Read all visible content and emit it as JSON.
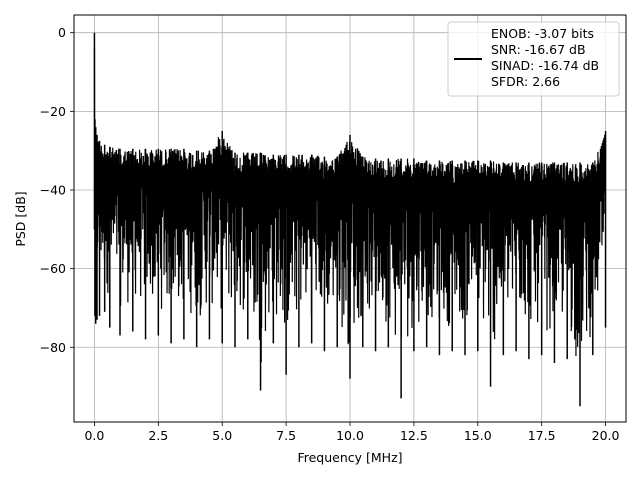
{
  "chart_data": {
    "type": "line",
    "xlabel": "Frequency [MHz]",
    "ylabel": "PSD [dB]",
    "xlim": [
      -0.8,
      20.8
    ],
    "ylim": [
      -99,
      4.5
    ],
    "x_ticks": [
      0.0,
      2.5,
      5.0,
      7.5,
      10.0,
      12.5,
      15.0,
      17.5,
      20.0
    ],
    "x_tick_labels": [
      "0.0",
      "2.5",
      "5.0",
      "7.5",
      "10.0",
      "12.5",
      "15.0",
      "17.5",
      "20.0"
    ],
    "y_ticks": [
      0,
      -20,
      -40,
      -60,
      -80
    ],
    "y_tick_labels": [
      "0",
      "−20",
      "−40",
      "−60",
      "−80"
    ],
    "grid": true,
    "legend_position": "top-right",
    "series": [
      {
        "name": "ENOB: -3.07 bits\nSNR: -16.67 dB\nSINAD: -16.74 dB\nSFDR: 2.66",
        "color": "#000000",
        "x": [
          0.0,
          0.02,
          0.05,
          0.1,
          0.2,
          0.4,
          0.6,
          1.0,
          1.5,
          2.0,
          2.5,
          3.0,
          3.5,
          4.0,
          4.5,
          5.0,
          5.5,
          6.0,
          6.5,
          7.0,
          7.5,
          8.0,
          8.5,
          9.0,
          9.5,
          10.0,
          10.5,
          11.0,
          11.5,
          12.0,
          12.5,
          13.0,
          13.5,
          14.0,
          14.5,
          15.0,
          15.5,
          16.0,
          16.5,
          17.0,
          17.5,
          18.0,
          18.5,
          19.0,
          19.5,
          20.0
        ],
        "envelope_upper": [
          0.0,
          -22.0,
          -24.0,
          -26.0,
          -27.5,
          -28.5,
          -29.0,
          -29.5,
          -29.5,
          -29.5,
          -29.5,
          -29.5,
          -29.5,
          -30.0,
          -30.0,
          -25.0,
          -30.5,
          -30.5,
          -30.5,
          -31.0,
          -31.0,
          -31.0,
          -31.0,
          -31.5,
          -31.5,
          -26.0,
          -31.5,
          -32.0,
          -32.0,
          -32.0,
          -32.0,
          -32.5,
          -32.5,
          -32.5,
          -32.5,
          -32.5,
          -32.5,
          -33.0,
          -33.0,
          -33.0,
          -33.0,
          -33.0,
          -33.0,
          -33.0,
          -33.0,
          -25.0
        ],
        "envelope_lower": [
          -50.0,
          -72.0,
          -74.0,
          -73.0,
          -72.0,
          -71.0,
          -75.0,
          -77.0,
          -76.0,
          -78.0,
          -77.0,
          -79.0,
          -78.0,
          -80.0,
          -78.0,
          -79.0,
          -80.0,
          -78.0,
          -91.0,
          -79.0,
          -87.0,
          -80.0,
          -79.0,
          -81.0,
          -80.0,
          -88.0,
          -80.0,
          -81.0,
          -80.0,
          -93.0,
          -81.0,
          -80.0,
          -82.0,
          -81.0,
          -82.0,
          -81.0,
          -90.0,
          -82.0,
          -81.0,
          -83.0,
          -82.0,
          -84.0,
          -83.0,
          -95.0,
          -82.0,
          -75.0
        ]
      }
    ]
  }
}
